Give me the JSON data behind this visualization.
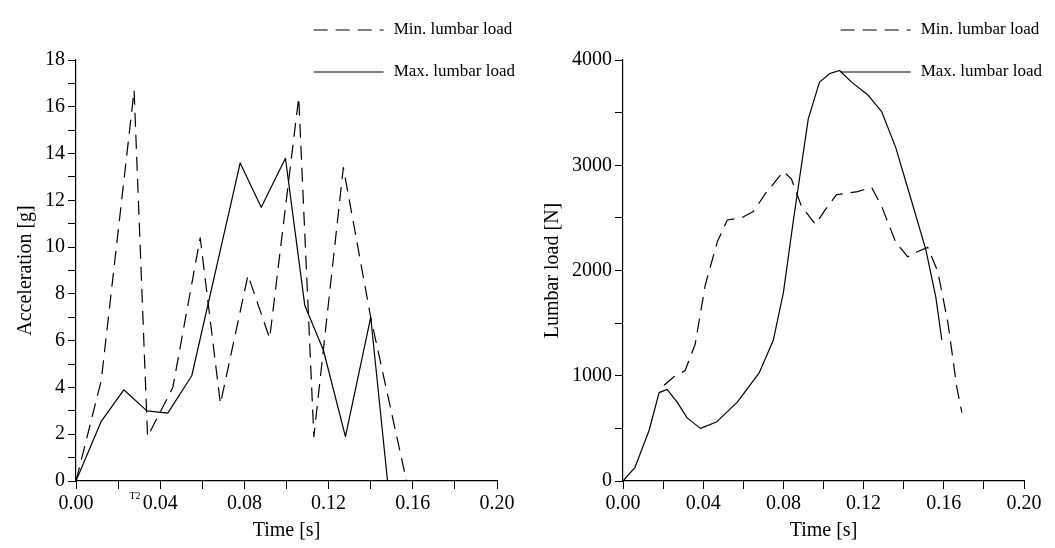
{
  "chart_data": [
    {
      "type": "line",
      "xlabel": "Time [s]",
      "ylabel": "Acceleration [g]",
      "legend": "top right",
      "grid": false,
      "marker": "none",
      "xlim": [
        0,
        0.2
      ],
      "ylim": [
        0,
        18
      ],
      "xticks": [
        {
          "value": 0,
          "label": "0.00"
        },
        {
          "value": 0.02,
          "label": null
        },
        {
          "value": 0.04,
          "label": "0.04"
        },
        {
          "value": 0.06,
          "label": null
        },
        {
          "value": 0.08,
          "label": "0.08"
        },
        {
          "value": 0.1,
          "label": null
        },
        {
          "value": 0.12,
          "label": "0.12"
        },
        {
          "value": 0.14,
          "label": null
        },
        {
          "value": 0.16,
          "label": "0.16"
        },
        {
          "value": 0.18,
          "label": null
        },
        {
          "value": 0.2,
          "label": "0.20"
        }
      ],
      "yticks": [
        0,
        {
          "value": 1,
          "label": null
        },
        2,
        {
          "value": 3,
          "label": null
        },
        4,
        {
          "value": 5,
          "label": null
        },
        6,
        {
          "value": 7,
          "label": null
        },
        8,
        {
          "value": 9,
          "label": null
        },
        10,
        {
          "value": 11,
          "label": null
        },
        12,
        {
          "value": 13,
          "label": null
        },
        14,
        {
          "value": 15,
          "label": null
        },
        16,
        {
          "value": 17,
          "label": null
        },
        18
      ],
      "annotations": [
        "T2"
      ],
      "series": [
        {
          "name": "Min. lumbar load",
          "color": "#000000",
          "line_style": "dashed",
          "x": [
            0,
            0.012,
            0.0276,
            0.034,
            0.046,
            0.059,
            0.0686,
            0.0817,
            0.092,
            0.1058,
            0.113,
            0.127,
            0.14,
            0.157,
            0.2
          ],
          "values": [
            0,
            4.3,
            16.7,
            1.9,
            4,
            10.4,
            3.3,
            8.8,
            6.1,
            16.4,
            1.9,
            13.4,
            7,
            0,
            0
          ]
        },
        {
          "name": "Max. lumbar load",
          "color": "#000000",
          "line_style": "solid",
          "x": [
            0,
            0.012,
            0.0227,
            0.0337,
            0.0436,
            0.055,
            0.078,
            0.088,
            0.0995,
            0.1087,
            0.1175,
            0.128,
            0.14,
            0.148,
            0.2
          ],
          "values": [
            0,
            2.55,
            3.9,
            3,
            2.9,
            4.5,
            13.6,
            11.7,
            13.8,
            7.5,
            5.6,
            1.9,
            7,
            0,
            0
          ]
        }
      ]
    },
    {
      "type": "line",
      "xlabel": "Time [s]",
      "ylabel": "Lumbar load [N]",
      "legend": "top right",
      "grid": false,
      "marker": "none",
      "xlim": [
        0,
        0.2
      ],
      "ylim": [
        0,
        4000
      ],
      "xticks": [
        {
          "value": 0,
          "label": "0.00"
        },
        {
          "value": 0.02,
          "label": null
        },
        {
          "value": 0.04,
          "label": "0.04"
        },
        {
          "value": 0.06,
          "label": null
        },
        {
          "value": 0.08,
          "label": "0.08"
        },
        {
          "value": 0.1,
          "label": null
        },
        {
          "value": 0.12,
          "label": "0.12"
        },
        {
          "value": 0.14,
          "label": null
        },
        {
          "value": 0.16,
          "label": "0.16"
        },
        {
          "value": 0.18,
          "label": null
        },
        {
          "value": 0.2,
          "label": "0.20"
        }
      ],
      "yticks": [
        0,
        {
          "value": 500,
          "label": null
        },
        1000,
        {
          "value": 1500,
          "label": null
        },
        2000,
        {
          "value": 2500,
          "label": null
        },
        3000,
        {
          "value": 3500,
          "label": null
        },
        4000
      ],
      "series": [
        {
          "name": "Min. lumbar load",
          "color": "#000000",
          "line_style": "dashed",
          "x": [
            0.0205,
            0.0254,
            0.031,
            0.036,
            0.041,
            0.047,
            0.052,
            0.059,
            0.065,
            0.071,
            0.08,
            0.084,
            0.089,
            0.096,
            0.101,
            0.1065,
            0.117,
            0.124,
            0.129,
            0.136,
            0.142,
            0.147,
            0.152,
            0.157,
            0.162,
            0.1665,
            0.169
          ],
          "values": [
            910,
            990,
            1050,
            1300,
            1860,
            2270,
            2480,
            2500,
            2560,
            2730,
            2940,
            2870,
            2610,
            2440,
            2580,
            2720,
            2750,
            2790,
            2610,
            2270,
            2130,
            2180,
            2220,
            1990,
            1510,
            890,
            650
          ]
        },
        {
          "name": "Max. lumbar load",
          "color": "#000000",
          "line_style": "solid",
          "x": [
            0,
            0.006,
            0.013,
            0.018,
            0.022,
            0.027,
            0.032,
            0.0386,
            0.0466,
            0.057,
            0.068,
            0.075,
            0.08,
            0.085,
            0.0924,
            0.098,
            0.103,
            0.108,
            0.114,
            0.122,
            0.129,
            0.136,
            0.143,
            0.151,
            0.156,
            0.159
          ],
          "values": [
            0,
            130,
            480,
            840,
            870,
            750,
            600,
            500,
            560,
            750,
            1030,
            1340,
            1790,
            2480,
            3440,
            3790,
            3870,
            3900,
            3790,
            3670,
            3510,
            3170,
            2720,
            2200,
            1750,
            1340
          ]
        }
      ]
    }
  ]
}
